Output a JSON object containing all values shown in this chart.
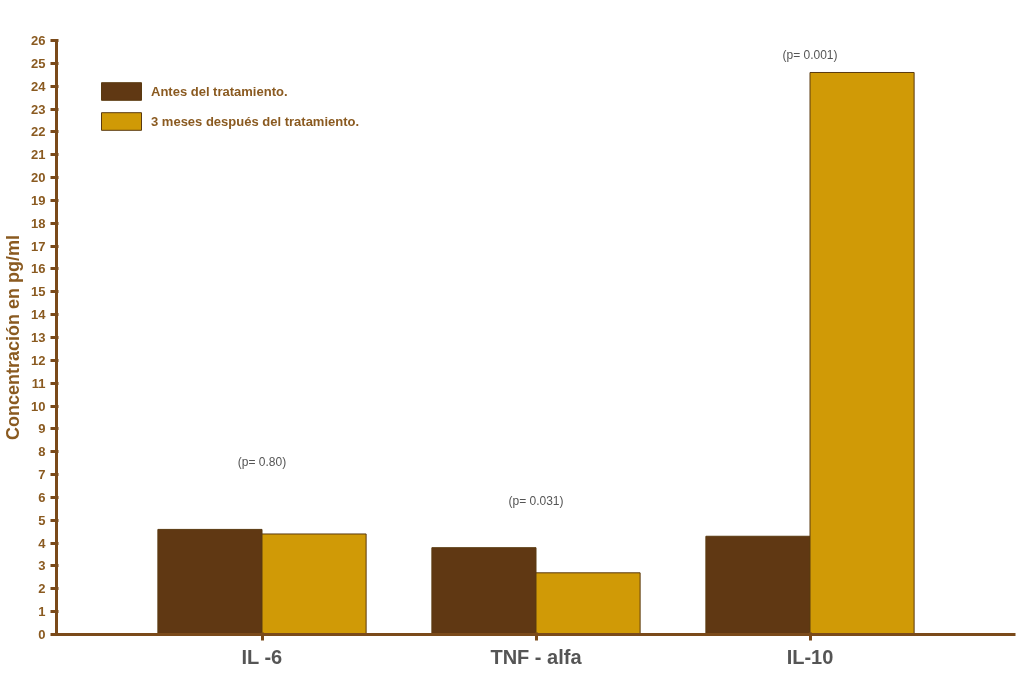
{
  "chart_data": {
    "type": "bar",
    "ylabel": "Concentración en pg/ml",
    "categories": [
      "IL -6",
      "TNF - alfa",
      "IL-10"
    ],
    "series": [
      {
        "name": "Antes del tratamiento.",
        "color": "#603813",
        "values": [
          4.6,
          3.8,
          4.3
        ]
      },
      {
        "name": "3 meses después del tratamiento.",
        "color": "#d09a06",
        "values": [
          4.4,
          2.7,
          24.6
        ]
      }
    ],
    "ylim": [
      0,
      26
    ],
    "yticks": [
      0,
      1,
      2,
      3,
      4,
      5,
      6,
      7,
      8,
      9,
      10,
      11,
      12,
      13,
      14,
      15,
      16,
      17,
      18,
      19,
      20,
      21,
      22,
      23,
      24,
      25,
      26
    ],
    "grid": false,
    "legend": "top left",
    "annotations": [
      "(p= 0.80)",
      "(p= 0.031)",
      "(p= 0.001)"
    ]
  }
}
